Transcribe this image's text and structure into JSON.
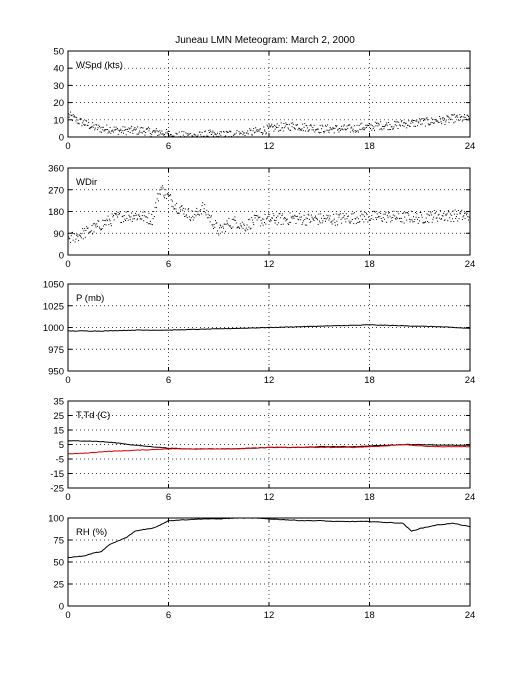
{
  "title": "Juneau LMN Meteogram:      March  2, 2000",
  "x_ticks": [
    "0",
    "6",
    "12",
    "18",
    "24"
  ],
  "colors": {
    "primary": "#000000",
    "dewpoint": "#e00000",
    "grid": "#000000"
  },
  "chart_data": [
    {
      "type": "scatter",
      "label": "WSpd (kts)",
      "ylim": [
        0,
        50
      ],
      "y_ticks": [
        "0",
        "10",
        "20",
        "30",
        "40",
        "50"
      ],
      "grid": true,
      "series": [
        {
          "style": "dots",
          "x": [
            0,
            0.5,
            1,
            1.5,
            2,
            2.5,
            3,
            3.5,
            4,
            4.5,
            5,
            5.5,
            6,
            6.5,
            7,
            7.5,
            8,
            8.5,
            9,
            9.5,
            10,
            10.5,
            11,
            11.5,
            12,
            12.5,
            13,
            13.5,
            14,
            14.5,
            15,
            15.5,
            16,
            16.5,
            17,
            17.5,
            18,
            18.5,
            19,
            19.5,
            20,
            20.5,
            21,
            21.5,
            22,
            22.5,
            23,
            23.5,
            24
          ],
          "values": [
            13,
            10,
            8,
            6,
            5,
            5,
            4,
            4,
            4,
            4,
            3,
            3,
            2,
            1,
            1,
            1,
            1,
            2,
            1,
            2,
            2,
            2,
            3,
            4,
            5,
            6,
            6,
            7,
            6,
            6,
            5,
            5,
            5,
            5,
            5,
            6,
            6,
            7,
            7,
            7,
            8,
            8,
            9,
            9,
            10,
            10,
            11,
            11,
            11
          ],
          "spread": 2.5
        }
      ]
    },
    {
      "type": "scatter",
      "label": "WDir",
      "ylim": [
        0,
        360
      ],
      "y_ticks": [
        "0",
        "90",
        "180",
        "270",
        "360"
      ],
      "grid": true,
      "series": [
        {
          "style": "dots",
          "x": [
            0,
            0.5,
            1,
            1.5,
            2,
            2.5,
            3,
            3.5,
            4,
            4.5,
            5,
            5.5,
            6,
            6.5,
            7,
            7.5,
            8,
            8.5,
            9,
            9.5,
            10,
            10.5,
            11,
            11.5,
            12,
            12.5,
            13,
            13.5,
            14,
            14.5,
            15,
            15.5,
            16,
            16.5,
            17,
            17.5,
            18,
            18.5,
            19,
            19.5,
            20,
            20.5,
            21,
            21.5,
            22,
            22.5,
            23,
            23.5,
            24
          ],
          "values": [
            70,
            80,
            95,
            110,
            130,
            145,
            160,
            165,
            165,
            160,
            150,
            280,
            240,
            200,
            180,
            160,
            200,
            150,
            100,
            130,
            140,
            120,
            140,
            145,
            150,
            150,
            150,
            155,
            150,
            150,
            150,
            150,
            150,
            155,
            155,
            160,
            160,
            160,
            160,
            160,
            155,
            160,
            155,
            160,
            165,
            165,
            165,
            165,
            160
          ],
          "spread": 25
        }
      ]
    },
    {
      "type": "line",
      "label": "P (mb)",
      "ylim": [
        950,
        1050
      ],
      "y_ticks": [
        "950",
        "975",
        "1000",
        "1025",
        "1050"
      ],
      "grid": true,
      "series": [
        {
          "style": "line",
          "x": [
            0,
            2,
            4,
            6,
            8,
            10,
            12,
            14,
            16,
            18,
            20,
            22,
            24
          ],
          "values": [
            996,
            996,
            997,
            997,
            998,
            999,
            1000,
            1001,
            1002,
            1003,
            1002,
            1001,
            999
          ]
        }
      ]
    },
    {
      "type": "line",
      "label": "T,Td (C)",
      "ylim": [
        -25,
        35
      ],
      "y_ticks": [
        "-25",
        "-15",
        "-5",
        "5",
        "15",
        "25",
        "35"
      ],
      "grid": true,
      "series": [
        {
          "style": "line",
          "color_key": "primary",
          "x": [
            0,
            1,
            2,
            3,
            4,
            5,
            6,
            7,
            8,
            9,
            10,
            11,
            12,
            13,
            14,
            15,
            16,
            17,
            18,
            19,
            20,
            21,
            22,
            23,
            24
          ],
          "values": [
            7.5,
            7.5,
            7,
            6,
            4.5,
            3.5,
            2.5,
            2,
            2,
            2,
            2,
            2.5,
            3,
            3,
            3,
            3.5,
            3.5,
            3.5,
            4,
            4.5,
            5,
            5,
            4.5,
            4.5,
            4.5
          ]
        },
        {
          "style": "line",
          "color_key": "dewpoint",
          "x": [
            0,
            1,
            2,
            3,
            4,
            5,
            6,
            7,
            8,
            9,
            10,
            11,
            12,
            13,
            14,
            15,
            16,
            17,
            18,
            19,
            20,
            21,
            22,
            23,
            24
          ],
          "values": [
            -1.5,
            -1,
            0,
            0.5,
            1,
            1.5,
            2,
            2,
            2,
            2,
            2,
            2.5,
            3,
            3,
            3,
            3,
            3,
            3,
            3.5,
            4,
            5,
            4,
            3.5,
            3.5,
            3.5
          ]
        }
      ]
    },
    {
      "type": "line",
      "label": "RH (%)",
      "ylim": [
        0,
        100
      ],
      "y_ticks": [
        "0",
        "25",
        "50",
        "75",
        "100"
      ],
      "grid": true,
      "series": [
        {
          "style": "line",
          "x": [
            0,
            0.5,
            1,
            1.5,
            2,
            2.5,
            3,
            3.5,
            4,
            4.5,
            5,
            5.5,
            6,
            7,
            8,
            9,
            10,
            11,
            12,
            13,
            14,
            15,
            16,
            17,
            18,
            19,
            20,
            20.5,
            21,
            21.5,
            22,
            22.5,
            23,
            23.5,
            24
          ],
          "values": [
            55,
            56,
            57,
            60,
            62,
            70,
            74,
            78,
            85,
            87,
            88,
            92,
            97,
            98,
            99,
            99,
            100,
            100,
            99,
            98,
            97,
            97,
            96,
            96,
            96,
            95,
            94,
            85,
            88,
            90,
            92,
            93,
            94,
            92,
            90
          ]
        }
      ]
    }
  ]
}
